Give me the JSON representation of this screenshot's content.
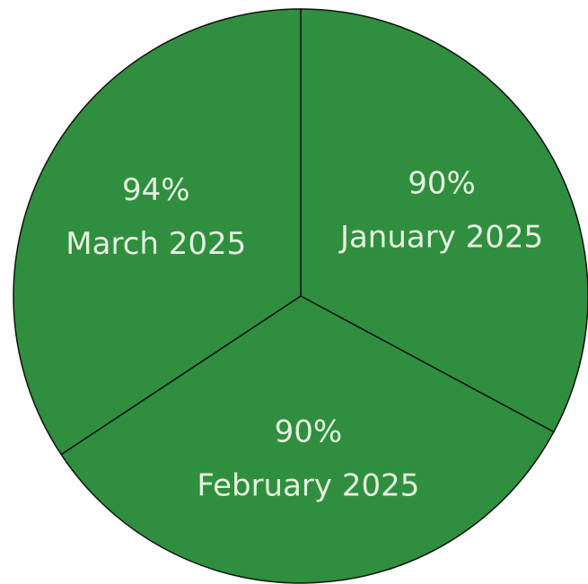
{
  "chart_data": {
    "type": "pie",
    "categories": [
      "January 2025",
      "February 2025",
      "March 2025"
    ],
    "values": [
      90,
      90,
      94
    ],
    "value_labels": [
      "90%",
      "90%",
      "94%"
    ],
    "color": "#2f8f3f"
  }
}
